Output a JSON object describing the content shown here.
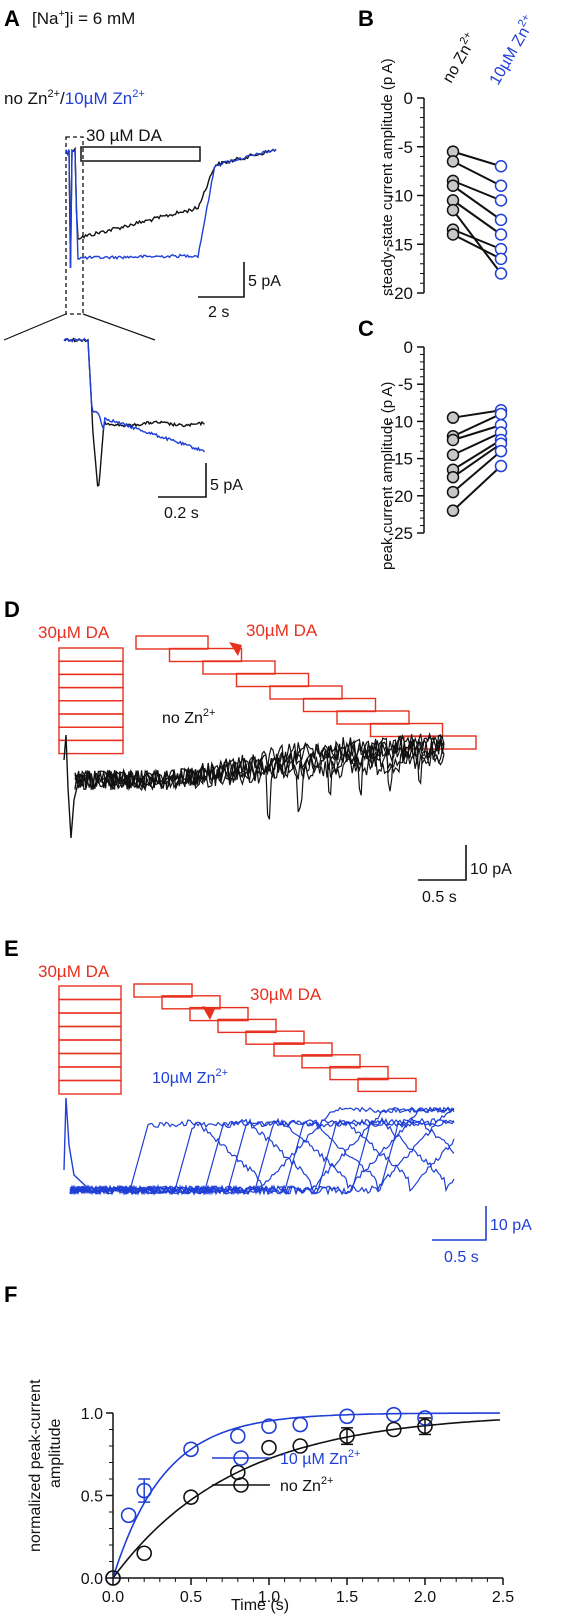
{
  "colors": {
    "black": "#111111",
    "blue": "#1f3fd6",
    "red": "#e8301e"
  },
  "panel_a": {
    "label": "A",
    "conc_prefix": "[Na",
    "conc_sup": "+",
    "conc_suffix": "]i = 6 mM",
    "legend_black_a": "no Zn",
    "legend_black_sup": "2+",
    "legend_sep": "/",
    "legend_blue": "10µM Zn",
    "legend_blue_sup": "2+",
    "drug_label": "30 µM DA",
    "scale_y": "5 pA",
    "scale_x": "2 s",
    "inset_scale_y": "5 pA",
    "inset_scale_x": "0.2 s"
  },
  "chart_data": [
    {
      "panel": "B",
      "type": "scatter",
      "ylabel": "steady-state current amplitude (p A)",
      "categories": [
        "no Zn2+",
        "10µM Zn2+"
      ],
      "ylim": [
        -20,
        0
      ],
      "yticks": [
        0,
        -5,
        -10,
        -15,
        -20
      ],
      "pairs": [
        [
          -5.5,
          -7.0
        ],
        [
          -6.5,
          -9.0
        ],
        [
          -8.5,
          -10.5
        ],
        [
          -9.0,
          -12.5
        ],
        [
          -10.5,
          -14.0
        ],
        [
          -13.5,
          -15.5
        ],
        [
          -14.0,
          -16.5
        ],
        [
          -11.5,
          -18.0
        ]
      ]
    },
    {
      "panel": "C",
      "type": "scatter",
      "ylabel": "peak current amplitude (p A)",
      "categories": [
        "no Zn2+",
        "10µM Zn2+"
      ],
      "ylim": [
        -25,
        0
      ],
      "yticks": [
        0,
        -5,
        -10,
        -15,
        -20,
        -25
      ],
      "pairs": [
        [
          -9.5,
          -8.5
        ],
        [
          -12.0,
          -9.0
        ],
        [
          -12.5,
          -10.5
        ],
        [
          -14.5,
          -11.5
        ],
        [
          -16.5,
          -12.5
        ],
        [
          -17.5,
          -13.0
        ],
        [
          -19.5,
          -14.0
        ],
        [
          -22.0,
          -16.0
        ]
      ]
    },
    {
      "panel": "F",
      "type": "line",
      "xlabel": "Time (s)",
      "ylabel": "normalized peak-current amplitude",
      "xlim": [
        0,
        2.5
      ],
      "ylim": [
        0,
        1.0
      ],
      "xticks": [
        0.0,
        0.5,
        1.0,
        1.5,
        2.0,
        2.5
      ],
      "yticks": [
        0.0,
        0.5,
        1.0
      ],
      "series": [
        {
          "name": "10 µM Zn2+",
          "x": [
            0.0,
            0.1,
            0.2,
            0.5,
            0.8,
            1.0,
            1.2,
            1.5,
            1.8,
            2.0
          ],
          "y": [
            0.0,
            0.38,
            0.53,
            0.78,
            0.86,
            0.92,
            0.93,
            0.98,
            0.99,
            0.97
          ],
          "err": [
            0,
            0,
            0.07,
            0,
            0,
            0,
            0,
            0,
            0,
            0
          ],
          "fit_tau": 0.33
        },
        {
          "name": "no Zn2+",
          "x": [
            0.0,
            0.2,
            0.5,
            0.8,
            1.0,
            1.2,
            1.5,
            1.8,
            2.0
          ],
          "y": [
            0.0,
            0.15,
            0.49,
            0.64,
            0.79,
            0.8,
            0.86,
            0.9,
            0.92
          ],
          "err": [
            0,
            0,
            0,
            0,
            0,
            0,
            0.05,
            0,
            0.05
          ],
          "fit_tau": 0.78
        }
      ]
    }
  ],
  "panel_b": {
    "label": "B",
    "cat_a": "no Zn",
    "cat_a_sup": "2+",
    "cat_b": "10µM Zn",
    "cat_b_sup": "2+",
    "ylabel": "steady-state current amplitude (p A)",
    "ticks": [
      "0",
      "-5",
      "-10",
      "-15",
      "-20"
    ]
  },
  "panel_c": {
    "label": "C",
    "ylabel": "peak current amplitude (p A)",
    "ticks": [
      "0",
      "-5",
      "-10",
      "-15",
      "-20",
      "-25"
    ]
  },
  "panel_d": {
    "label": "D",
    "drug_left": "30µM DA",
    "drug_right": "30µM DA",
    "cond": "no Zn",
    "cond_sup": "2+",
    "scale_y": "10 pA",
    "scale_x": "0.5 s"
  },
  "panel_e": {
    "label": "E",
    "drug_left": "30µM DA",
    "drug_right": "30µM DA",
    "cond": "10µM Zn",
    "cond_sup": "2+",
    "scale_y": "10 pA",
    "scale_x": "0.5 s"
  },
  "panel_f": {
    "label": "F",
    "ylabel_1": "normalized peak-current",
    "ylabel_2": "amplitude",
    "xlabel": "Time (s)",
    "legend_blue": "10 µM Zn",
    "legend_blue_sup": "2+",
    "legend_black": "no Zn",
    "legend_black_sup": "2+",
    "xticks": [
      "0.0",
      "0.5",
      "1.0",
      "1.5",
      "2.0",
      "2.5"
    ],
    "yticks": [
      "0.0",
      "0.5",
      "1.0"
    ]
  }
}
